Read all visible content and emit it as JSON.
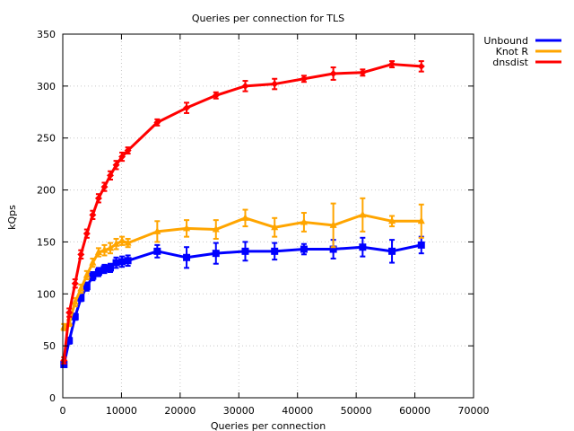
{
  "chart_data": {
    "type": "line",
    "title": "Queries per connection for TLS",
    "xlabel": "Queries per connection",
    "ylabel": "kQps",
    "xlim": [
      0,
      70000
    ],
    "ylim": [
      0,
      350
    ],
    "x_ticks": [
      0,
      10000,
      20000,
      30000,
      40000,
      50000,
      60000,
      70000
    ],
    "y_ticks": [
      0,
      50,
      100,
      150,
      200,
      250,
      300,
      350
    ],
    "x_tick_labels": [
      "0",
      "10000",
      "20000",
      "30000",
      "40000",
      "50000",
      "60000",
      "70000"
    ],
    "y_tick_labels": [
      "0",
      "50",
      "100",
      "150",
      "200",
      "250",
      "300",
      "350"
    ],
    "grid": true,
    "legend_position": "outside-top-right",
    "series": [
      {
        "name": "Unbound",
        "color": "#0000ff",
        "marker": "square",
        "points": [
          {
            "x": 200,
            "y": 32,
            "err": 2
          },
          {
            "x": 1100,
            "y": 55,
            "err": 3
          },
          {
            "x": 2100,
            "y": 78,
            "err": 3
          },
          {
            "x": 3100,
            "y": 96,
            "err": 3
          },
          {
            "x": 4100,
            "y": 107,
            "err": 4
          },
          {
            "x": 5100,
            "y": 117,
            "err": 4
          },
          {
            "x": 6100,
            "y": 121,
            "err": 4
          },
          {
            "x": 7100,
            "y": 124,
            "err": 4
          },
          {
            "x": 8100,
            "y": 125,
            "err": 4
          },
          {
            "x": 9100,
            "y": 130,
            "err": 5
          },
          {
            "x": 10100,
            "y": 131,
            "err": 5
          },
          {
            "x": 11100,
            "y": 132,
            "err": 5
          },
          {
            "x": 16100,
            "y": 141,
            "err": 6
          },
          {
            "x": 21100,
            "y": 135,
            "err": 10
          },
          {
            "x": 26100,
            "y": 139,
            "err": 10
          },
          {
            "x": 31100,
            "y": 141,
            "err": 9
          },
          {
            "x": 36100,
            "y": 141,
            "err": 8
          },
          {
            "x": 41100,
            "y": 143,
            "err": 5
          },
          {
            "x": 46100,
            "y": 143,
            "err": 9
          },
          {
            "x": 51100,
            "y": 145,
            "err": 9
          },
          {
            "x": 56100,
            "y": 141,
            "err": 11
          },
          {
            "x": 61100,
            "y": 147,
            "err": 8
          }
        ]
      },
      {
        "name": "Knot R",
        "color": "#ffa500",
        "marker": "triangle",
        "points": [
          {
            "x": 200,
            "y": 68,
            "err": 3
          },
          {
            "x": 1100,
            "y": 72,
            "err": 3
          },
          {
            "x": 2100,
            "y": 92,
            "err": 4
          },
          {
            "x": 3100,
            "y": 105,
            "err": 4
          },
          {
            "x": 4100,
            "y": 118,
            "err": 4
          },
          {
            "x": 5100,
            "y": 130,
            "err": 4
          },
          {
            "x": 6100,
            "y": 140,
            "err": 4
          },
          {
            "x": 7100,
            "y": 142,
            "err": 5
          },
          {
            "x": 8100,
            "y": 144,
            "err": 5
          },
          {
            "x": 9100,
            "y": 148,
            "err": 5
          },
          {
            "x": 10100,
            "y": 151,
            "err": 4
          },
          {
            "x": 11100,
            "y": 149,
            "err": 4
          },
          {
            "x": 16100,
            "y": 160,
            "err": 10
          },
          {
            "x": 21100,
            "y": 163,
            "err": 8
          },
          {
            "x": 26100,
            "y": 162,
            "err": 9
          },
          {
            "x": 31100,
            "y": 173,
            "err": 8
          },
          {
            "x": 36100,
            "y": 164,
            "err": 9
          },
          {
            "x": 41100,
            "y": 169,
            "err": 9
          },
          {
            "x": 46100,
            "y": 166,
            "err": 21
          },
          {
            "x": 51100,
            "y": 176,
            "err": 16
          },
          {
            "x": 56100,
            "y": 170,
            "err": 5
          },
          {
            "x": 61100,
            "y": 170,
            "err": 16
          }
        ]
      },
      {
        "name": "dnsdist",
        "color": "#ff0000",
        "marker": "diamond",
        "points": [
          {
            "x": 200,
            "y": 36,
            "err": 3
          },
          {
            "x": 1100,
            "y": 82,
            "err": 4
          },
          {
            "x": 2100,
            "y": 110,
            "err": 4
          },
          {
            "x": 3100,
            "y": 138,
            "err": 4
          },
          {
            "x": 4100,
            "y": 158,
            "err": 4
          },
          {
            "x": 5100,
            "y": 176,
            "err": 4
          },
          {
            "x": 6100,
            "y": 192,
            "err": 4
          },
          {
            "x": 7100,
            "y": 203,
            "err": 4
          },
          {
            "x": 8100,
            "y": 214,
            "err": 4
          },
          {
            "x": 9100,
            "y": 224,
            "err": 4
          },
          {
            "x": 10100,
            "y": 232,
            "err": 4
          },
          {
            "x": 11100,
            "y": 238,
            "err": 3
          },
          {
            "x": 16100,
            "y": 265,
            "err": 3
          },
          {
            "x": 21100,
            "y": 279,
            "err": 5
          },
          {
            "x": 26100,
            "y": 291,
            "err": 3
          },
          {
            "x": 31100,
            "y": 300,
            "err": 5
          },
          {
            "x": 36100,
            "y": 302,
            "err": 5
          },
          {
            "x": 41100,
            "y": 307,
            "err": 3
          },
          {
            "x": 46100,
            "y": 312,
            "err": 6
          },
          {
            "x": 51100,
            "y": 313,
            "err": 3
          },
          {
            "x": 56100,
            "y": 321,
            "err": 3
          },
          {
            "x": 61100,
            "y": 319,
            "err": 5
          }
        ]
      }
    ]
  }
}
